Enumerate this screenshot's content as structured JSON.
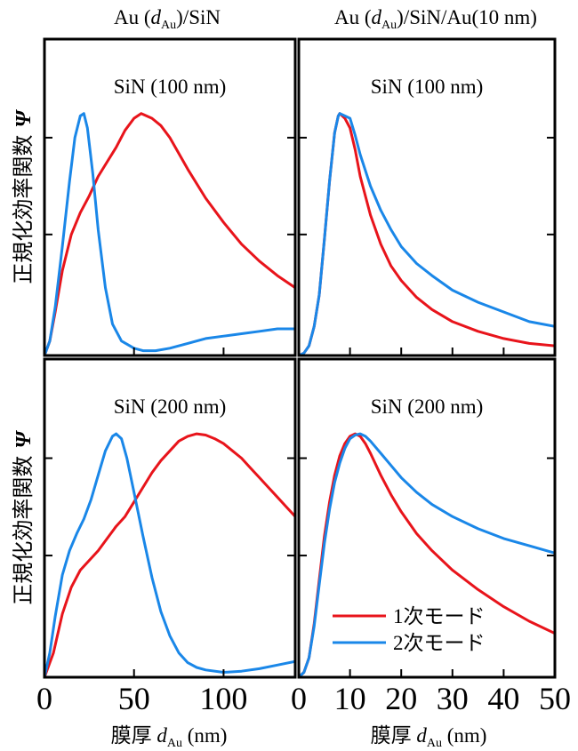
{
  "colors": {
    "mode1": "#e8141b",
    "mode2": "#1a87e8",
    "frame": "#000000"
  },
  "column_titles": [
    {
      "main_a": "Au (",
      "var": "d",
      "sub": "Au",
      "main_b": ")/SiN"
    },
    {
      "main_a": "Au (",
      "var": "d",
      "sub": "Au",
      "main_b": ")/SiN/Au(10 nm)"
    }
  ],
  "ylabel": {
    "text": "正規化効率関数",
    "symbol": "Ψ"
  },
  "xlabel": {
    "prefix": "膜厚 ",
    "var": "d",
    "sub": "Au",
    "unit": " (nm)"
  },
  "legend": {
    "mode1": "1次モード",
    "mode2": "2次モード"
  },
  "chart_data": [
    {
      "type": "line",
      "panel": "top-left",
      "label": "SiN (100 nm)",
      "xlim": [
        0,
        140
      ],
      "ylim": [
        0,
        1
      ],
      "xticks": [
        0,
        50,
        100
      ],
      "yticks": [
        0.5,
        0.9
      ],
      "show_xtick_labels": false,
      "series": [
        {
          "name": "1次モード",
          "color": "#e8141b",
          "points": [
            [
              0,
              0
            ],
            [
              3,
              0.06
            ],
            [
              6,
              0.18
            ],
            [
              10,
              0.35
            ],
            [
              15,
              0.5
            ],
            [
              20,
              0.59
            ],
            [
              25,
              0.66
            ],
            [
              30,
              0.74
            ],
            [
              35,
              0.8
            ],
            [
              40,
              0.86
            ],
            [
              45,
              0.93
            ],
            [
              50,
              0.98
            ],
            [
              54,
              1.0
            ],
            [
              60,
              0.98
            ],
            [
              65,
              0.95
            ],
            [
              70,
              0.9
            ],
            [
              80,
              0.77
            ],
            [
              90,
              0.65
            ],
            [
              100,
              0.55
            ],
            [
              110,
              0.46
            ],
            [
              120,
              0.39
            ],
            [
              130,
              0.33
            ],
            [
              140,
              0.28
            ]
          ]
        },
        {
          "name": "2次モード",
          "color": "#1a87e8",
          "points": [
            [
              0,
              0
            ],
            [
              3,
              0.06
            ],
            [
              6,
              0.2
            ],
            [
              10,
              0.45
            ],
            [
              14,
              0.72
            ],
            [
              17,
              0.9
            ],
            [
              20,
              0.99
            ],
            [
              22,
              1.0
            ],
            [
              24,
              0.94
            ],
            [
              27,
              0.75
            ],
            [
              30,
              0.52
            ],
            [
              34,
              0.28
            ],
            [
              38,
              0.13
            ],
            [
              43,
              0.06
            ],
            [
              50,
              0.03
            ],
            [
              55,
              0.02
            ],
            [
              62,
              0.02
            ],
            [
              70,
              0.03
            ],
            [
              80,
              0.05
            ],
            [
              90,
              0.07
            ],
            [
              100,
              0.08
            ],
            [
              110,
              0.09
            ],
            [
              120,
              0.1
            ],
            [
              130,
              0.11
            ],
            [
              140,
              0.11
            ]
          ]
        }
      ]
    },
    {
      "type": "line",
      "panel": "top-right",
      "label": "SiN (100 nm)",
      "xlim": [
        0,
        50
      ],
      "ylim": [
        0,
        1
      ],
      "xticks": [
        0,
        10,
        20,
        30,
        40,
        50
      ],
      "yticks": [
        0.5,
        0.9
      ],
      "show_xtick_labels": false,
      "series": [
        {
          "name": "1次モード",
          "color": "#e8141b",
          "points": [
            [
              0,
              0
            ],
            [
              1,
              0.01
            ],
            [
              2,
              0.04
            ],
            [
              3,
              0.12
            ],
            [
              4,
              0.25
            ],
            [
              5,
              0.48
            ],
            [
              6,
              0.72
            ],
            [
              7,
              0.92
            ],
            [
              7.7,
              0.99
            ],
            [
              8,
              1.0
            ],
            [
              9,
              0.98
            ],
            [
              10,
              0.94
            ],
            [
              11,
              0.85
            ],
            [
              12,
              0.74
            ],
            [
              14,
              0.58
            ],
            [
              16,
              0.46
            ],
            [
              18,
              0.37
            ],
            [
              20,
              0.31
            ],
            [
              23,
              0.24
            ],
            [
              26,
              0.19
            ],
            [
              30,
              0.14
            ],
            [
              35,
              0.1
            ],
            [
              40,
              0.07
            ],
            [
              45,
              0.05
            ],
            [
              50,
              0.04
            ]
          ]
        },
        {
          "name": "2次モード",
          "color": "#1a87e8",
          "points": [
            [
              0,
              0
            ],
            [
              1,
              0.01
            ],
            [
              2,
              0.04
            ],
            [
              3,
              0.12
            ],
            [
              4,
              0.25
            ],
            [
              5,
              0.48
            ],
            [
              6,
              0.72
            ],
            [
              7,
              0.92
            ],
            [
              7.7,
              0.99
            ],
            [
              8,
              1.0
            ],
            [
              9,
              0.99
            ],
            [
              10,
              0.98
            ],
            [
              11,
              0.91
            ],
            [
              12,
              0.83
            ],
            [
              14,
              0.7
            ],
            [
              16,
              0.6
            ],
            [
              18,
              0.52
            ],
            [
              20,
              0.45
            ],
            [
              23,
              0.38
            ],
            [
              26,
              0.33
            ],
            [
              30,
              0.27
            ],
            [
              35,
              0.22
            ],
            [
              40,
              0.18
            ],
            [
              45,
              0.14
            ],
            [
              50,
              0.12
            ]
          ]
        }
      ]
    },
    {
      "type": "line",
      "panel": "bottom-left",
      "label": "SiN (200 nm)",
      "xlim": [
        0,
        140
      ],
      "ylim": [
        0,
        1
      ],
      "xticks": [
        0,
        50,
        100
      ],
      "yticks": [
        0.5,
        0.9
      ],
      "show_xtick_labels": true,
      "series": [
        {
          "name": "1次モード",
          "color": "#e8141b",
          "points": [
            [
              0,
              0
            ],
            [
              5,
              0.1
            ],
            [
              10,
              0.26
            ],
            [
              15,
              0.37
            ],
            [
              20,
              0.44
            ],
            [
              25,
              0.48
            ],
            [
              30,
              0.52
            ],
            [
              35,
              0.57
            ],
            [
              40,
              0.62
            ],
            [
              45,
              0.66
            ],
            [
              50,
              0.72
            ],
            [
              55,
              0.78
            ],
            [
              60,
              0.84
            ],
            [
              65,
              0.89
            ],
            [
              70,
              0.93
            ],
            [
              75,
              0.97
            ],
            [
              80,
              0.99
            ],
            [
              85,
              1.0
            ],
            [
              90,
              0.995
            ],
            [
              95,
              0.98
            ],
            [
              100,
              0.96
            ],
            [
              105,
              0.93
            ],
            [
              110,
              0.9
            ],
            [
              115,
              0.86
            ],
            [
              120,
              0.82
            ],
            [
              125,
              0.78
            ],
            [
              130,
              0.74
            ],
            [
              135,
              0.7
            ],
            [
              140,
              0.66
            ]
          ]
        },
        {
          "name": "2次モード",
          "color": "#1a87e8",
          "points": [
            [
              0,
              0
            ],
            [
              3,
              0.1
            ],
            [
              6,
              0.25
            ],
            [
              10,
              0.42
            ],
            [
              14,
              0.52
            ],
            [
              18,
              0.59
            ],
            [
              22,
              0.65
            ],
            [
              26,
              0.73
            ],
            [
              30,
              0.83
            ],
            [
              34,
              0.93
            ],
            [
              38,
              0.99
            ],
            [
              40,
              1.0
            ],
            [
              43,
              0.98
            ],
            [
              46,
              0.9
            ],
            [
              50,
              0.76
            ],
            [
              55,
              0.58
            ],
            [
              60,
              0.41
            ],
            [
              65,
              0.27
            ],
            [
              70,
              0.17
            ],
            [
              75,
              0.1
            ],
            [
              80,
              0.06
            ],
            [
              85,
              0.04
            ],
            [
              90,
              0.03
            ],
            [
              100,
              0.02
            ],
            [
              110,
              0.025
            ],
            [
              120,
              0.035
            ],
            [
              130,
              0.05
            ],
            [
              140,
              0.065
            ]
          ]
        }
      ]
    },
    {
      "type": "line",
      "panel": "bottom-right",
      "label": "SiN (200 nm)",
      "xlim": [
        0,
        50
      ],
      "ylim": [
        0,
        1
      ],
      "xticks": [
        0,
        10,
        20,
        30,
        40,
        50
      ],
      "yticks": [
        0.5,
        0.9
      ],
      "show_xtick_labels": true,
      "legend": "bottom-right",
      "series": [
        {
          "name": "1次モード",
          "color": "#e8141b",
          "points": [
            [
              0,
              0
            ],
            [
              1,
              0.02
            ],
            [
              2,
              0.08
            ],
            [
              3,
              0.22
            ],
            [
              4,
              0.4
            ],
            [
              5,
              0.58
            ],
            [
              6,
              0.72
            ],
            [
              7,
              0.83
            ],
            [
              8,
              0.91
            ],
            [
              9,
              0.96
            ],
            [
              10,
              0.99
            ],
            [
              11,
              1.0
            ],
            [
              12,
              0.99
            ],
            [
              13,
              0.96
            ],
            [
              14,
              0.92
            ],
            [
              16,
              0.83
            ],
            [
              18,
              0.75
            ],
            [
              20,
              0.68
            ],
            [
              23,
              0.59
            ],
            [
              26,
              0.52
            ],
            [
              30,
              0.44
            ],
            [
              35,
              0.36
            ],
            [
              40,
              0.29
            ],
            [
              45,
              0.23
            ],
            [
              50,
              0.18
            ]
          ]
        },
        {
          "name": "2次モード",
          "color": "#1a87e8",
          "points": [
            [
              0,
              0
            ],
            [
              1,
              0.02
            ],
            [
              2,
              0.08
            ],
            [
              3,
              0.21
            ],
            [
              4,
              0.38
            ],
            [
              5,
              0.55
            ],
            [
              6,
              0.69
            ],
            [
              7,
              0.8
            ],
            [
              8,
              0.88
            ],
            [
              9,
              0.94
            ],
            [
              10,
              0.98
            ],
            [
              11,
              0.995
            ],
            [
              12,
              1.0
            ],
            [
              13,
              0.99
            ],
            [
              14,
              0.97
            ],
            [
              16,
              0.92
            ],
            [
              18,
              0.87
            ],
            [
              20,
              0.82
            ],
            [
              23,
              0.76
            ],
            [
              26,
              0.71
            ],
            [
              30,
              0.66
            ],
            [
              35,
              0.61
            ],
            [
              40,
              0.57
            ],
            [
              45,
              0.54
            ],
            [
              50,
              0.51
            ]
          ]
        }
      ]
    }
  ]
}
